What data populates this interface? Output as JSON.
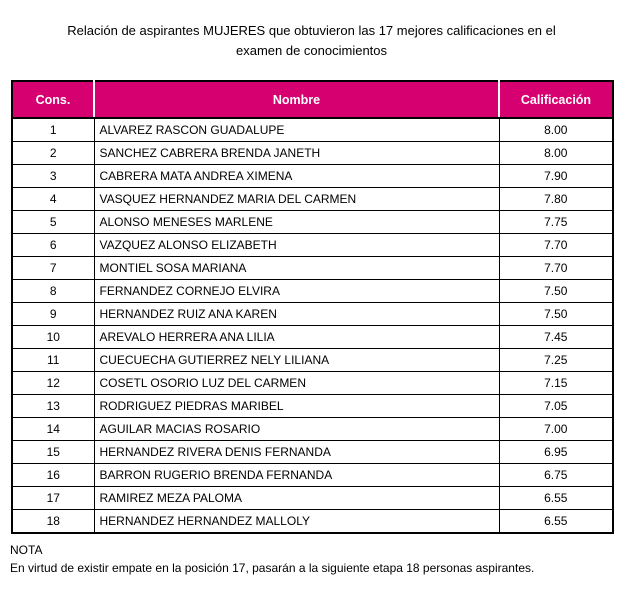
{
  "title": "Relación de aspirantes MUJERES que obtuvieron las 17 mejores calificaciones en el\nexamen de conocimientos",
  "table": {
    "columns": [
      "Cons.",
      "Nombre",
      "Calificación"
    ],
    "rows": [
      {
        "cons": "1",
        "nombre": "ALVAREZ RASCON GUADALUPE",
        "calificacion": "8.00"
      },
      {
        "cons": "2",
        "nombre": "SANCHEZ CABRERA BRENDA JANETH",
        "calificacion": "8.00"
      },
      {
        "cons": "3",
        "nombre": "CABRERA MATA ANDREA XIMENA",
        "calificacion": "7.90"
      },
      {
        "cons": "4",
        "nombre": "VASQUEZ HERNANDEZ MARIA DEL CARMEN",
        "calificacion": "7.80"
      },
      {
        "cons": "5",
        "nombre": "ALONSO MENESES MARLENE",
        "calificacion": "7.75"
      },
      {
        "cons": "6",
        "nombre": "VAZQUEZ ALONSO ELIZABETH",
        "calificacion": "7.70"
      },
      {
        "cons": "7",
        "nombre": "MONTIEL SOSA MARIANA",
        "calificacion": "7.70"
      },
      {
        "cons": "8",
        "nombre": "FERNANDEZ CORNEJO ELVIRA",
        "calificacion": "7.50"
      },
      {
        "cons": "9",
        "nombre": "HERNANDEZ RUIZ ANA KAREN",
        "calificacion": "7.50"
      },
      {
        "cons": "10",
        "nombre": "AREVALO HERRERA ANA LILIA",
        "calificacion": "7.45"
      },
      {
        "cons": "11",
        "nombre": "CUECUECHA GUTIERREZ NELY LILIANA",
        "calificacion": "7.25"
      },
      {
        "cons": "12",
        "nombre": "COSETL OSORIO LUZ DEL CARMEN",
        "calificacion": "7.15"
      },
      {
        "cons": "13",
        "nombre": "RODRIGUEZ PIEDRAS MARIBEL",
        "calificacion": "7.05"
      },
      {
        "cons": "14",
        "nombre": "AGUILAR MACIAS ROSARIO",
        "calificacion": "7.00"
      },
      {
        "cons": "15",
        "nombre": "HERNANDEZ RIVERA DENIS FERNANDA",
        "calificacion": "6.95"
      },
      {
        "cons": "16",
        "nombre": "BARRON RUGERIO BRENDA FERNANDA",
        "calificacion": "6.75"
      },
      {
        "cons": "17",
        "nombre": "RAMIREZ MEZA PALOMA",
        "calificacion": "6.55"
      },
      {
        "cons": "18",
        "nombre": "HERNANDEZ HERNANDEZ MALLOLY",
        "calificacion": "6.55"
      }
    ]
  },
  "note": {
    "label": "NOTA",
    "text": "En virtud de existir empate en la posición 17, pasarán a la siguiente etapa 18 personas aspirantes."
  },
  "colors": {
    "header_bg": "#D60070",
    "header_text": "#FFFFFF",
    "border": "#000000"
  }
}
